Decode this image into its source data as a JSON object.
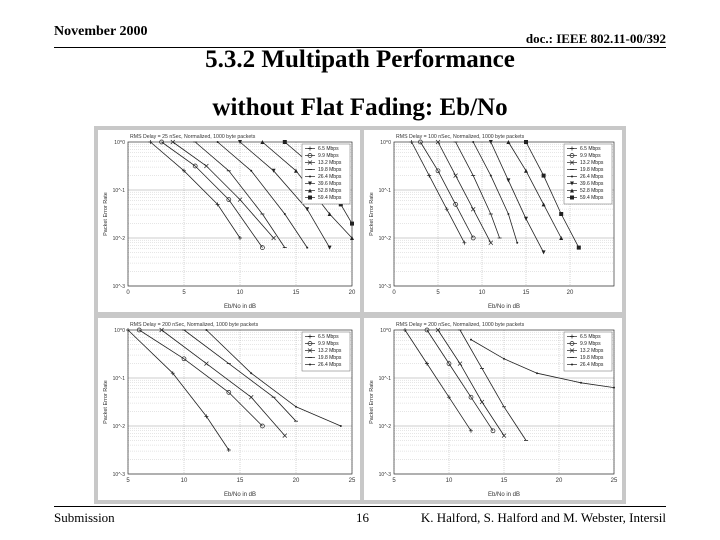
{
  "header": {
    "date": "November 2000",
    "doc_id": "doc.: IEEE 802.11-00/392",
    "title_line1": "5.3.2 Multipath Performance",
    "title_line2": "without Flat Fading: Eb/No"
  },
  "footer": {
    "left": "Submission",
    "page": "16",
    "authors": "K. Halford, S. Halford and M. Webster, Intersil"
  },
  "chart_data": [
    {
      "type": "line",
      "title": "RMS Delay = 25 nSec, Normalized, 1000 byte packets",
      "xlabel": "Eb/No in dB",
      "ylabel": "Packet Error Rate",
      "xlim": [
        0,
        20
      ],
      "ylim_log10": [
        -3,
        0
      ],
      "y_scale": "log",
      "x_ticks": [
        "0",
        "5",
        "10",
        "15",
        "20"
      ],
      "y_ticks": [
        "10^0",
        "10^-1",
        "10^-2",
        "10^-3"
      ],
      "legend_position": "top-right",
      "series": [
        {
          "name": "6.5 Mbps",
          "points": [
            [
              2,
              0
            ],
            [
              5,
              -0.6
            ],
            [
              8,
              -1.3
            ],
            [
              10,
              -2.0
            ]
          ]
        },
        {
          "name": "9.9 Mbps",
          "points": [
            [
              3,
              0
            ],
            [
              6,
              -0.5
            ],
            [
              9,
              -1.2
            ],
            [
              12,
              -2.2
            ]
          ]
        },
        {
          "name": "13.2 Mbps",
          "points": [
            [
              4,
              0
            ],
            [
              7,
              -0.5
            ],
            [
              10,
              -1.2
            ],
            [
              13,
              -2.0
            ]
          ]
        },
        {
          "name": "19.8 Mbps",
          "points": [
            [
              6,
              0
            ],
            [
              9,
              -0.6
            ],
            [
              12,
              -1.5
            ],
            [
              14,
              -2.2
            ]
          ]
        },
        {
          "name": "26.4 Mbps",
          "points": [
            [
              8,
              0
            ],
            [
              11,
              -0.6
            ],
            [
              14,
              -1.5
            ],
            [
              16,
              -2.2
            ]
          ]
        },
        {
          "name": "39.6 Mbps",
          "points": [
            [
              10,
              0
            ],
            [
              13,
              -0.6
            ],
            [
              16,
              -1.4
            ],
            [
              18,
              -2.2
            ]
          ]
        },
        {
          "name": "52.8 Mbps",
          "points": [
            [
              12,
              0
            ],
            [
              15,
              -0.6
            ],
            [
              18,
              -1.5
            ],
            [
              20,
              -2.0
            ]
          ]
        },
        {
          "name": "59.4 Mbps",
          "points": [
            [
              14,
              0
            ],
            [
              17,
              -0.6
            ],
            [
              19,
              -1.3
            ],
            [
              20,
              -1.7
            ]
          ]
        }
      ]
    },
    {
      "type": "line",
      "title": "RMS Delay = 100 nSec, Normalized, 1000 byte packets",
      "xlabel": "Eb/No in dB",
      "ylabel": "Packet Error Rate",
      "xlim": [
        0,
        25
      ],
      "ylim_log10": [
        -3,
        0
      ],
      "y_scale": "log",
      "x_ticks": [
        "0",
        "5",
        "10",
        "15",
        "20"
      ],
      "y_ticks": [
        "10^0",
        "10^-1",
        "10^-2",
        "10^-3"
      ],
      "legend_position": "top-right",
      "series": [
        {
          "name": "6.5 Mbps",
          "points": [
            [
              2,
              0
            ],
            [
              4,
              -0.7
            ],
            [
              6,
              -1.4
            ],
            [
              8,
              -2.1
            ]
          ]
        },
        {
          "name": "9.9 Mbps",
          "points": [
            [
              3,
              0
            ],
            [
              5,
              -0.6
            ],
            [
              7,
              -1.3
            ],
            [
              9,
              -2.0
            ]
          ]
        },
        {
          "name": "13.2 Mbps",
          "points": [
            [
              5,
              0
            ],
            [
              7,
              -0.7
            ],
            [
              9,
              -1.4
            ],
            [
              11,
              -2.1
            ]
          ]
        },
        {
          "name": "19.8 Mbps",
          "points": [
            [
              7,
              0
            ],
            [
              9,
              -0.7
            ],
            [
              11,
              -1.5
            ],
            [
              12,
              -2.0
            ]
          ]
        },
        {
          "name": "26.4 Mbps",
          "points": [
            [
              9,
              0
            ],
            [
              11,
              -0.7
            ],
            [
              13,
              -1.5
            ],
            [
              14,
              -2.1
            ]
          ]
        },
        {
          "name": "39.6 Mbps",
          "points": [
            [
              11,
              0
            ],
            [
              13,
              -0.8
            ],
            [
              15,
              -1.6
            ],
            [
              17,
              -2.3
            ]
          ]
        },
        {
          "name": "52.8 Mbps",
          "points": [
            [
              13,
              0
            ],
            [
              15,
              -0.6
            ],
            [
              17,
              -1.3
            ],
            [
              19,
              -2.0
            ]
          ]
        },
        {
          "name": "59.4 Mbps",
          "points": [
            [
              15,
              0
            ],
            [
              17,
              -0.7
            ],
            [
              19,
              -1.5
            ],
            [
              21,
              -2.2
            ]
          ]
        }
      ]
    },
    {
      "type": "line",
      "title": "RMS Delay = 200 nSec, Normalized, 1000 byte packets",
      "xlabel": "Eb/No in dB",
      "ylabel": "Packet Error Rate",
      "xlim": [
        5,
        25
      ],
      "ylim_log10": [
        -3,
        0
      ],
      "y_scale": "log",
      "x_ticks": [
        "5",
        "10",
        "15",
        "20",
        "25"
      ],
      "y_ticks": [
        "10^0",
        "10^-1",
        "10^-2",
        "10^-3"
      ],
      "legend_position": "top-right",
      "series": [
        {
          "name": "6.5 Mbps",
          "points": [
            [
              5,
              0
            ],
            [
              9,
              -0.9
            ],
            [
              12,
              -1.8
            ],
            [
              14,
              -2.5
            ]
          ]
        },
        {
          "name": "9.9 Mbps",
          "points": [
            [
              6,
              0
            ],
            [
              10,
              -0.6
            ],
            [
              14,
              -1.3
            ],
            [
              17,
              -2.0
            ]
          ]
        },
        {
          "name": "13.2 Mbps",
          "points": [
            [
              8,
              0
            ],
            [
              12,
              -0.7
            ],
            [
              16,
              -1.4
            ],
            [
              19,
              -2.2
            ]
          ]
        },
        {
          "name": "19.8 Mbps",
          "points": [
            [
              10,
              0
            ],
            [
              14,
              -0.7
            ],
            [
              18,
              -1.4
            ],
            [
              20,
              -1.9
            ]
          ]
        },
        {
          "name": "26.4 Mbps",
          "points": [
            [
              12,
              0
            ],
            [
              16,
              -0.9
            ],
            [
              20,
              -1.6
            ],
            [
              24,
              -2.0
            ]
          ]
        }
      ]
    },
    {
      "type": "line",
      "title": "RMS Delay = 200 nSec, Normalized, 1000 byte packets",
      "xlabel": "Eb/No in dB",
      "ylabel": "Packet Error Rate",
      "xlim": [
        5,
        25
      ],
      "ylim_log10": [
        -3,
        0
      ],
      "y_scale": "log",
      "x_ticks": [
        "5",
        "10",
        "15",
        "20",
        "25"
      ],
      "y_ticks": [
        "10^0",
        "10^-1",
        "10^-2",
        "10^-3"
      ],
      "legend_position": "top-right",
      "series": [
        {
          "name": "6.5 Mbps",
          "points": [
            [
              6,
              0
            ],
            [
              8,
              -0.7
            ],
            [
              10,
              -1.4
            ],
            [
              12,
              -2.1
            ]
          ]
        },
        {
          "name": "9.9 Mbps",
          "points": [
            [
              8,
              0
            ],
            [
              10,
              -0.7
            ],
            [
              12,
              -1.4
            ],
            [
              14,
              -2.1
            ]
          ]
        },
        {
          "name": "13.2 Mbps",
          "points": [
            [
              9,
              0
            ],
            [
              11,
              -0.7
            ],
            [
              13,
              -1.5
            ],
            [
              15,
              -2.2
            ]
          ]
        },
        {
          "name": "19.8 Mbps",
          "points": [
            [
              11,
              0
            ],
            [
              13,
              -0.8
            ],
            [
              15,
              -1.6
            ],
            [
              17,
              -2.3
            ]
          ]
        },
        {
          "name": "26.4 Mbps",
          "points": [
            [
              12,
              -0.2
            ],
            [
              15,
              -0.6
            ],
            [
              18,
              -0.9
            ],
            [
              22,
              -1.1
            ],
            [
              25,
              -1.2
            ]
          ]
        }
      ]
    }
  ]
}
